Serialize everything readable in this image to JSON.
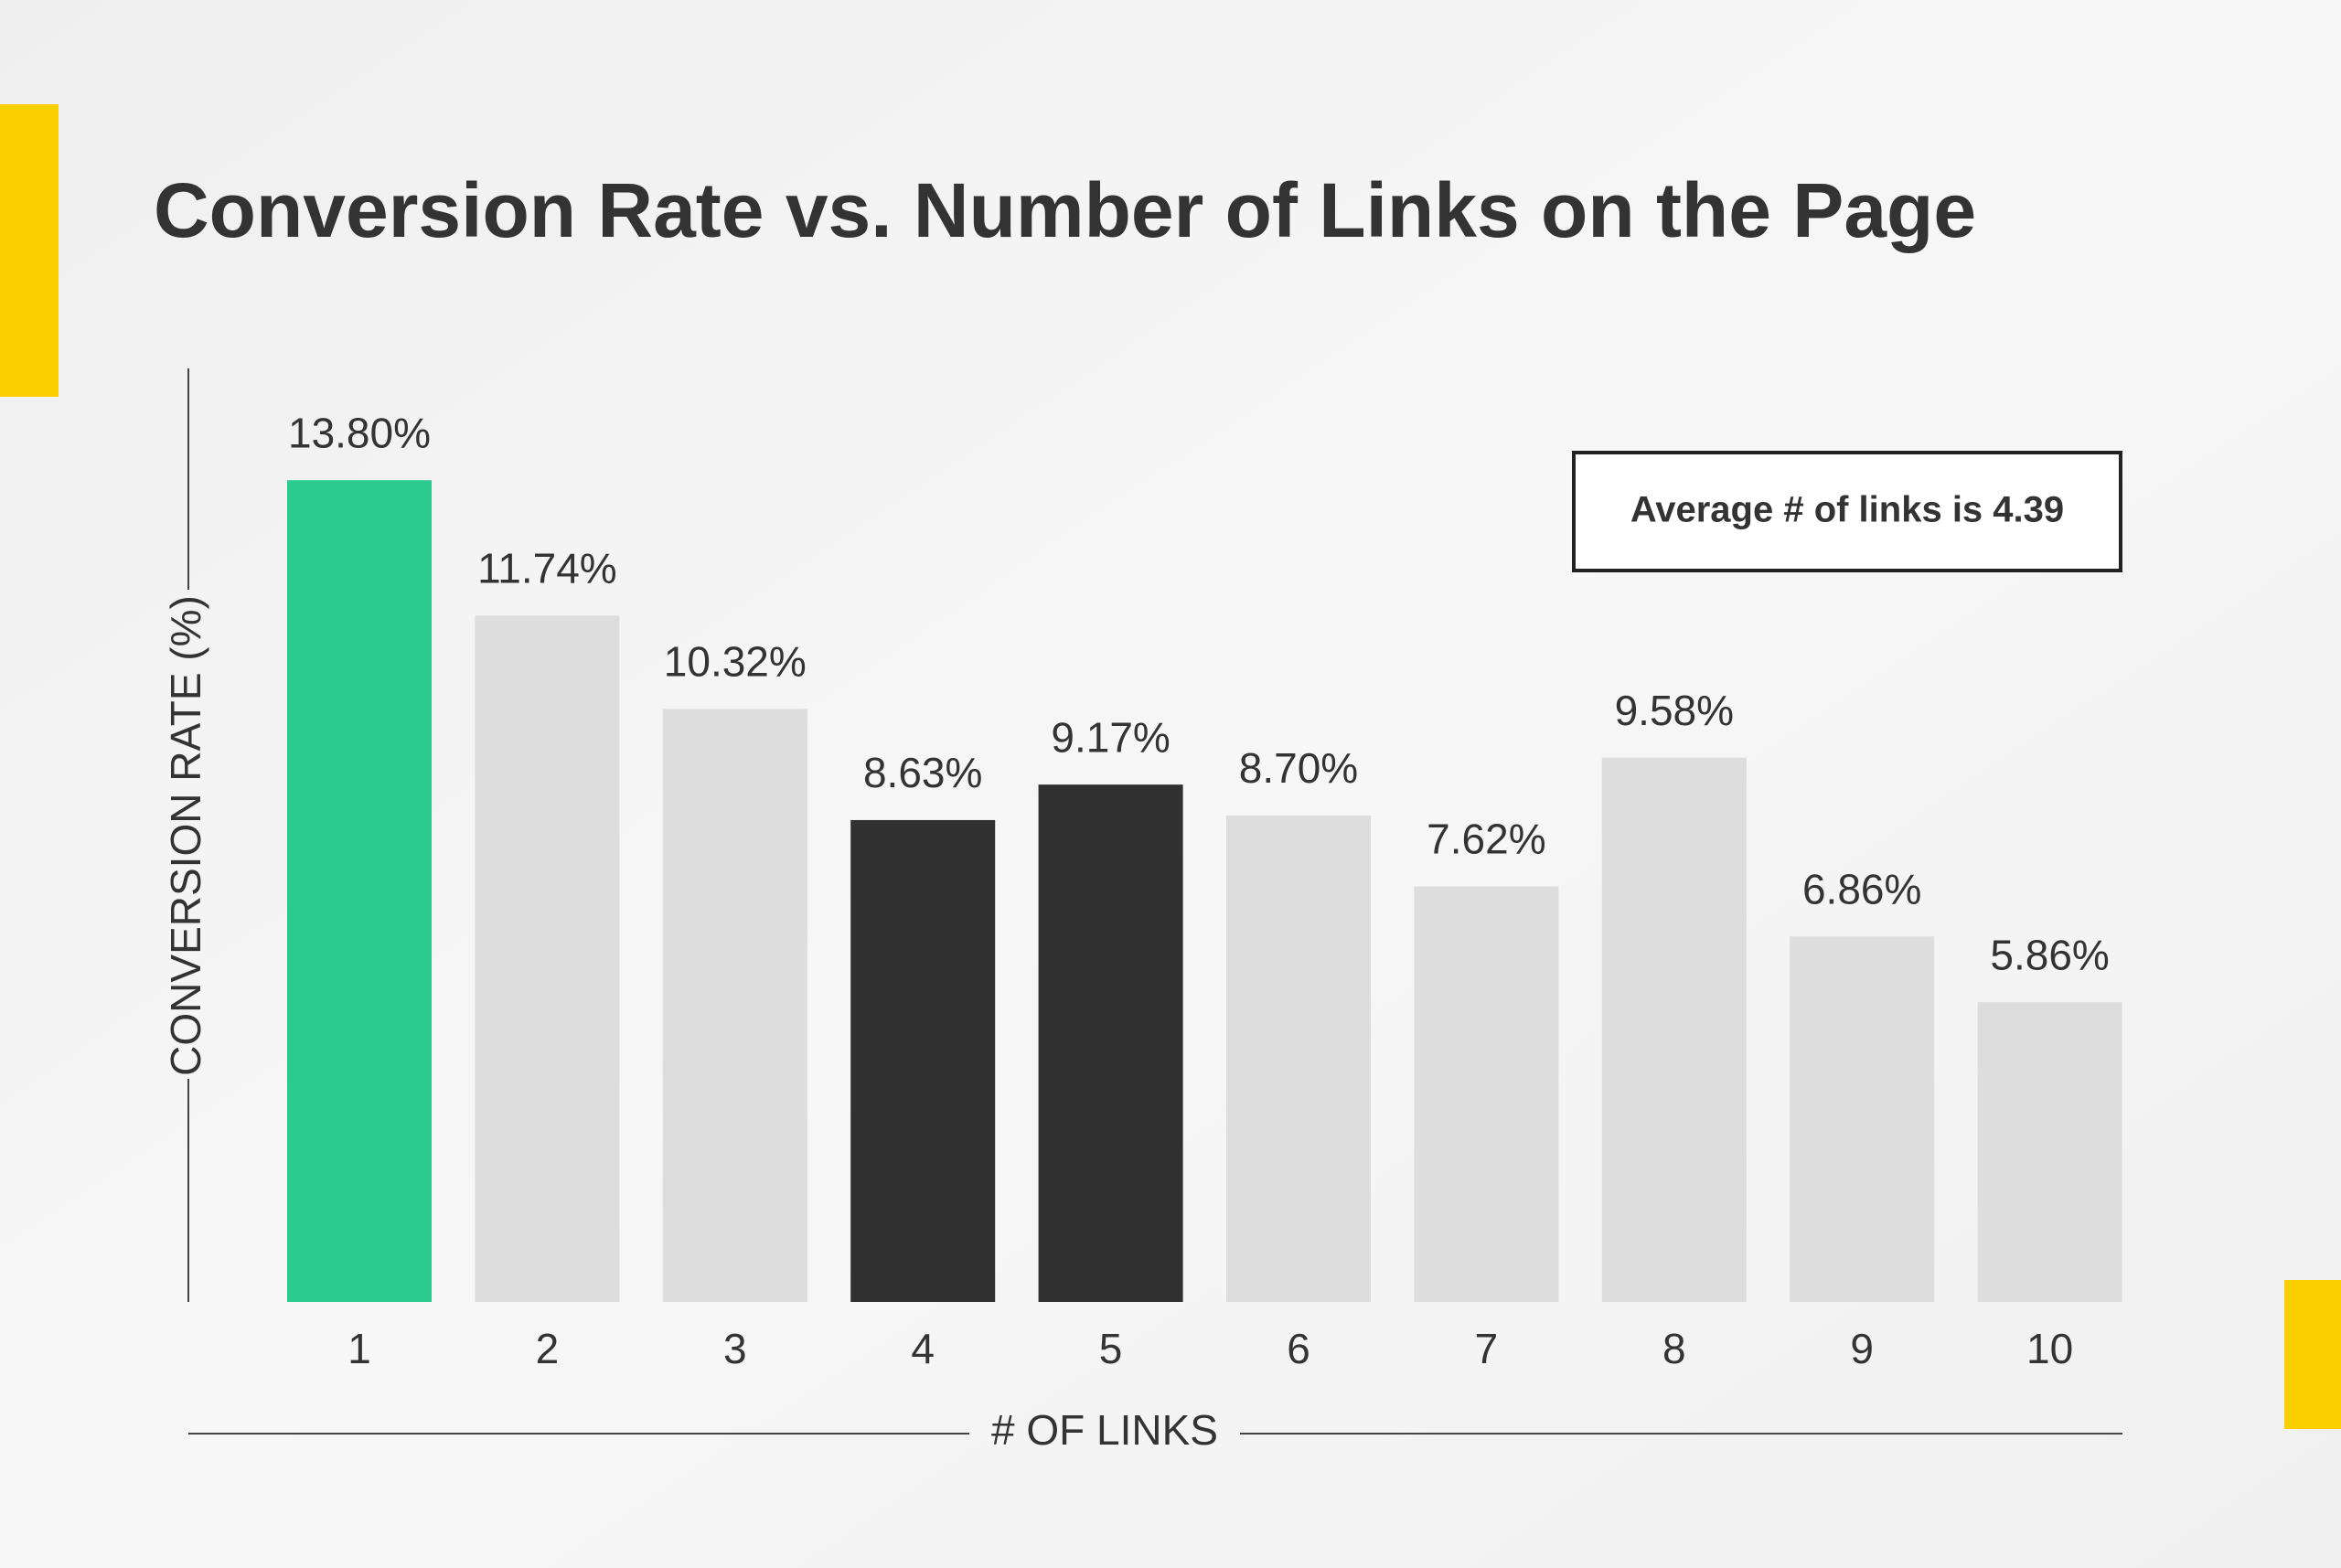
{
  "chart_data": {
    "type": "bar",
    "title": "Conversion Rate vs. Number of Links on the Page",
    "x_label": "# OF LINKS",
    "y_label": "CONVERSION RATE (%)",
    "annotation": "Average # of links is 4.39",
    "categories": [
      "1",
      "2",
      "3",
      "4",
      "5",
      "6",
      "7",
      "8",
      "9",
      "10"
    ],
    "values": [
      13.8,
      11.74,
      10.32,
      8.63,
      9.17,
      8.7,
      7.62,
      9.58,
      6.86,
      5.86
    ],
    "value_labels": [
      "13.80%",
      "11.74%",
      "10.32%",
      "8.63%",
      "9.17%",
      "8.70%",
      "7.62%",
      "9.58%",
      "6.86%",
      "5.86%"
    ],
    "colors": [
      "#2bcb8f",
      "#dddddd",
      "#dddddd",
      "#303030",
      "#303030",
      "#dddddd",
      "#dddddd",
      "#dddddd",
      "#dddddd",
      "#dddddd"
    ],
    "ylim": [
      1.3,
      15.5
    ],
    "grid": false
  }
}
